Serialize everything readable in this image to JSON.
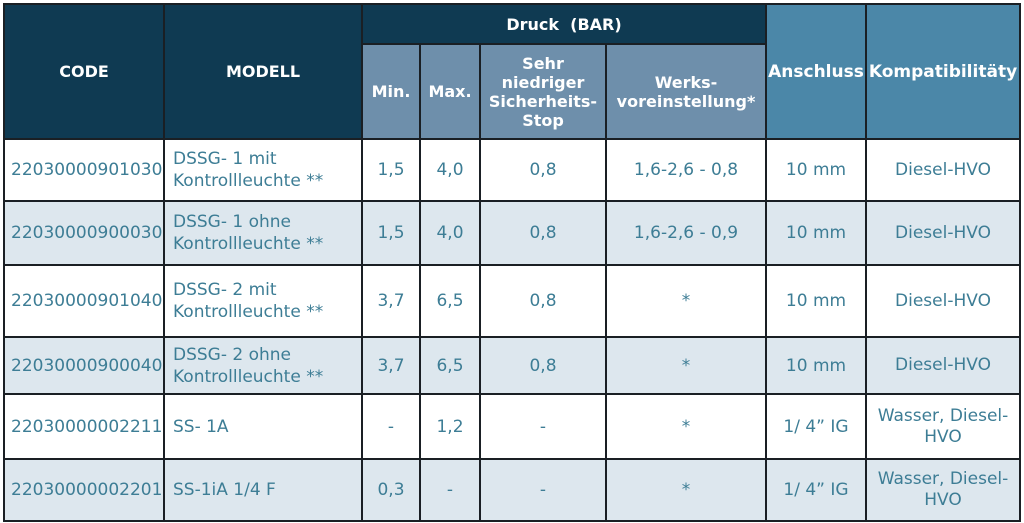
{
  "header": {
    "code": "CODE",
    "model": "MODELL",
    "pressure_group": "Druck  (BAR)",
    "min": "Min.",
    "max": "Max.",
    "very_low_safety_stop": "Sehr\nniedriger\nSicherheits-\nStop",
    "factory_setting": "Werks-\nvoreinstellung*",
    "connection": "Anschluss",
    "compatibility": "Kompatibilitäty"
  },
  "rows": [
    {
      "code": "22030000901030",
      "model": "DSSG- 1 mit\nKontrollleuchte **",
      "min": "1,5",
      "max": "4,0",
      "stop": "0,8",
      "factory": "1,6-2,6 - 0,8",
      "connection": "10 mm",
      "compatibility": "Diesel-HVO"
    },
    {
      "code": "22030000900030",
      "model": "DSSG- 1 ohne\nKontrollleuchte **",
      "min": "1,5",
      "max": "4,0",
      "stop": "0,8",
      "factory": "1,6-2,6 - 0,9",
      "connection": "10 mm",
      "compatibility": "Diesel-HVO"
    },
    {
      "code": "22030000901040",
      "model": "DSSG- 2 mit\nKontrollleuchte **",
      "min": "3,7",
      "max": "6,5",
      "stop": "0,8",
      "factory": "*",
      "connection": "10 mm",
      "compatibility": "Diesel-HVO"
    },
    {
      "code": "22030000900040",
      "model": "DSSG- 2 ohne\nKontrollleuchte **",
      "min": "3,7",
      "max": "6,5",
      "stop": "0,8",
      "factory": "*",
      "connection": "10 mm",
      "compatibility": "Diesel-HVO"
    },
    {
      "code": "22030000002211",
      "model": "SS- 1A",
      "min": "-",
      "max": "1,2",
      "stop": "-",
      "factory": "*",
      "connection": "1/ 4” IG",
      "compatibility": "Wasser, Diesel-\nHVO"
    },
    {
      "code": "22030000002201",
      "model": "SS-1iA 1/4 F",
      "min": "0,3",
      "max": "-",
      "stop": "-",
      "factory": "*",
      "connection": "1/ 4” IG",
      "compatibility": "Wasser, Diesel-\nHVO"
    }
  ]
}
